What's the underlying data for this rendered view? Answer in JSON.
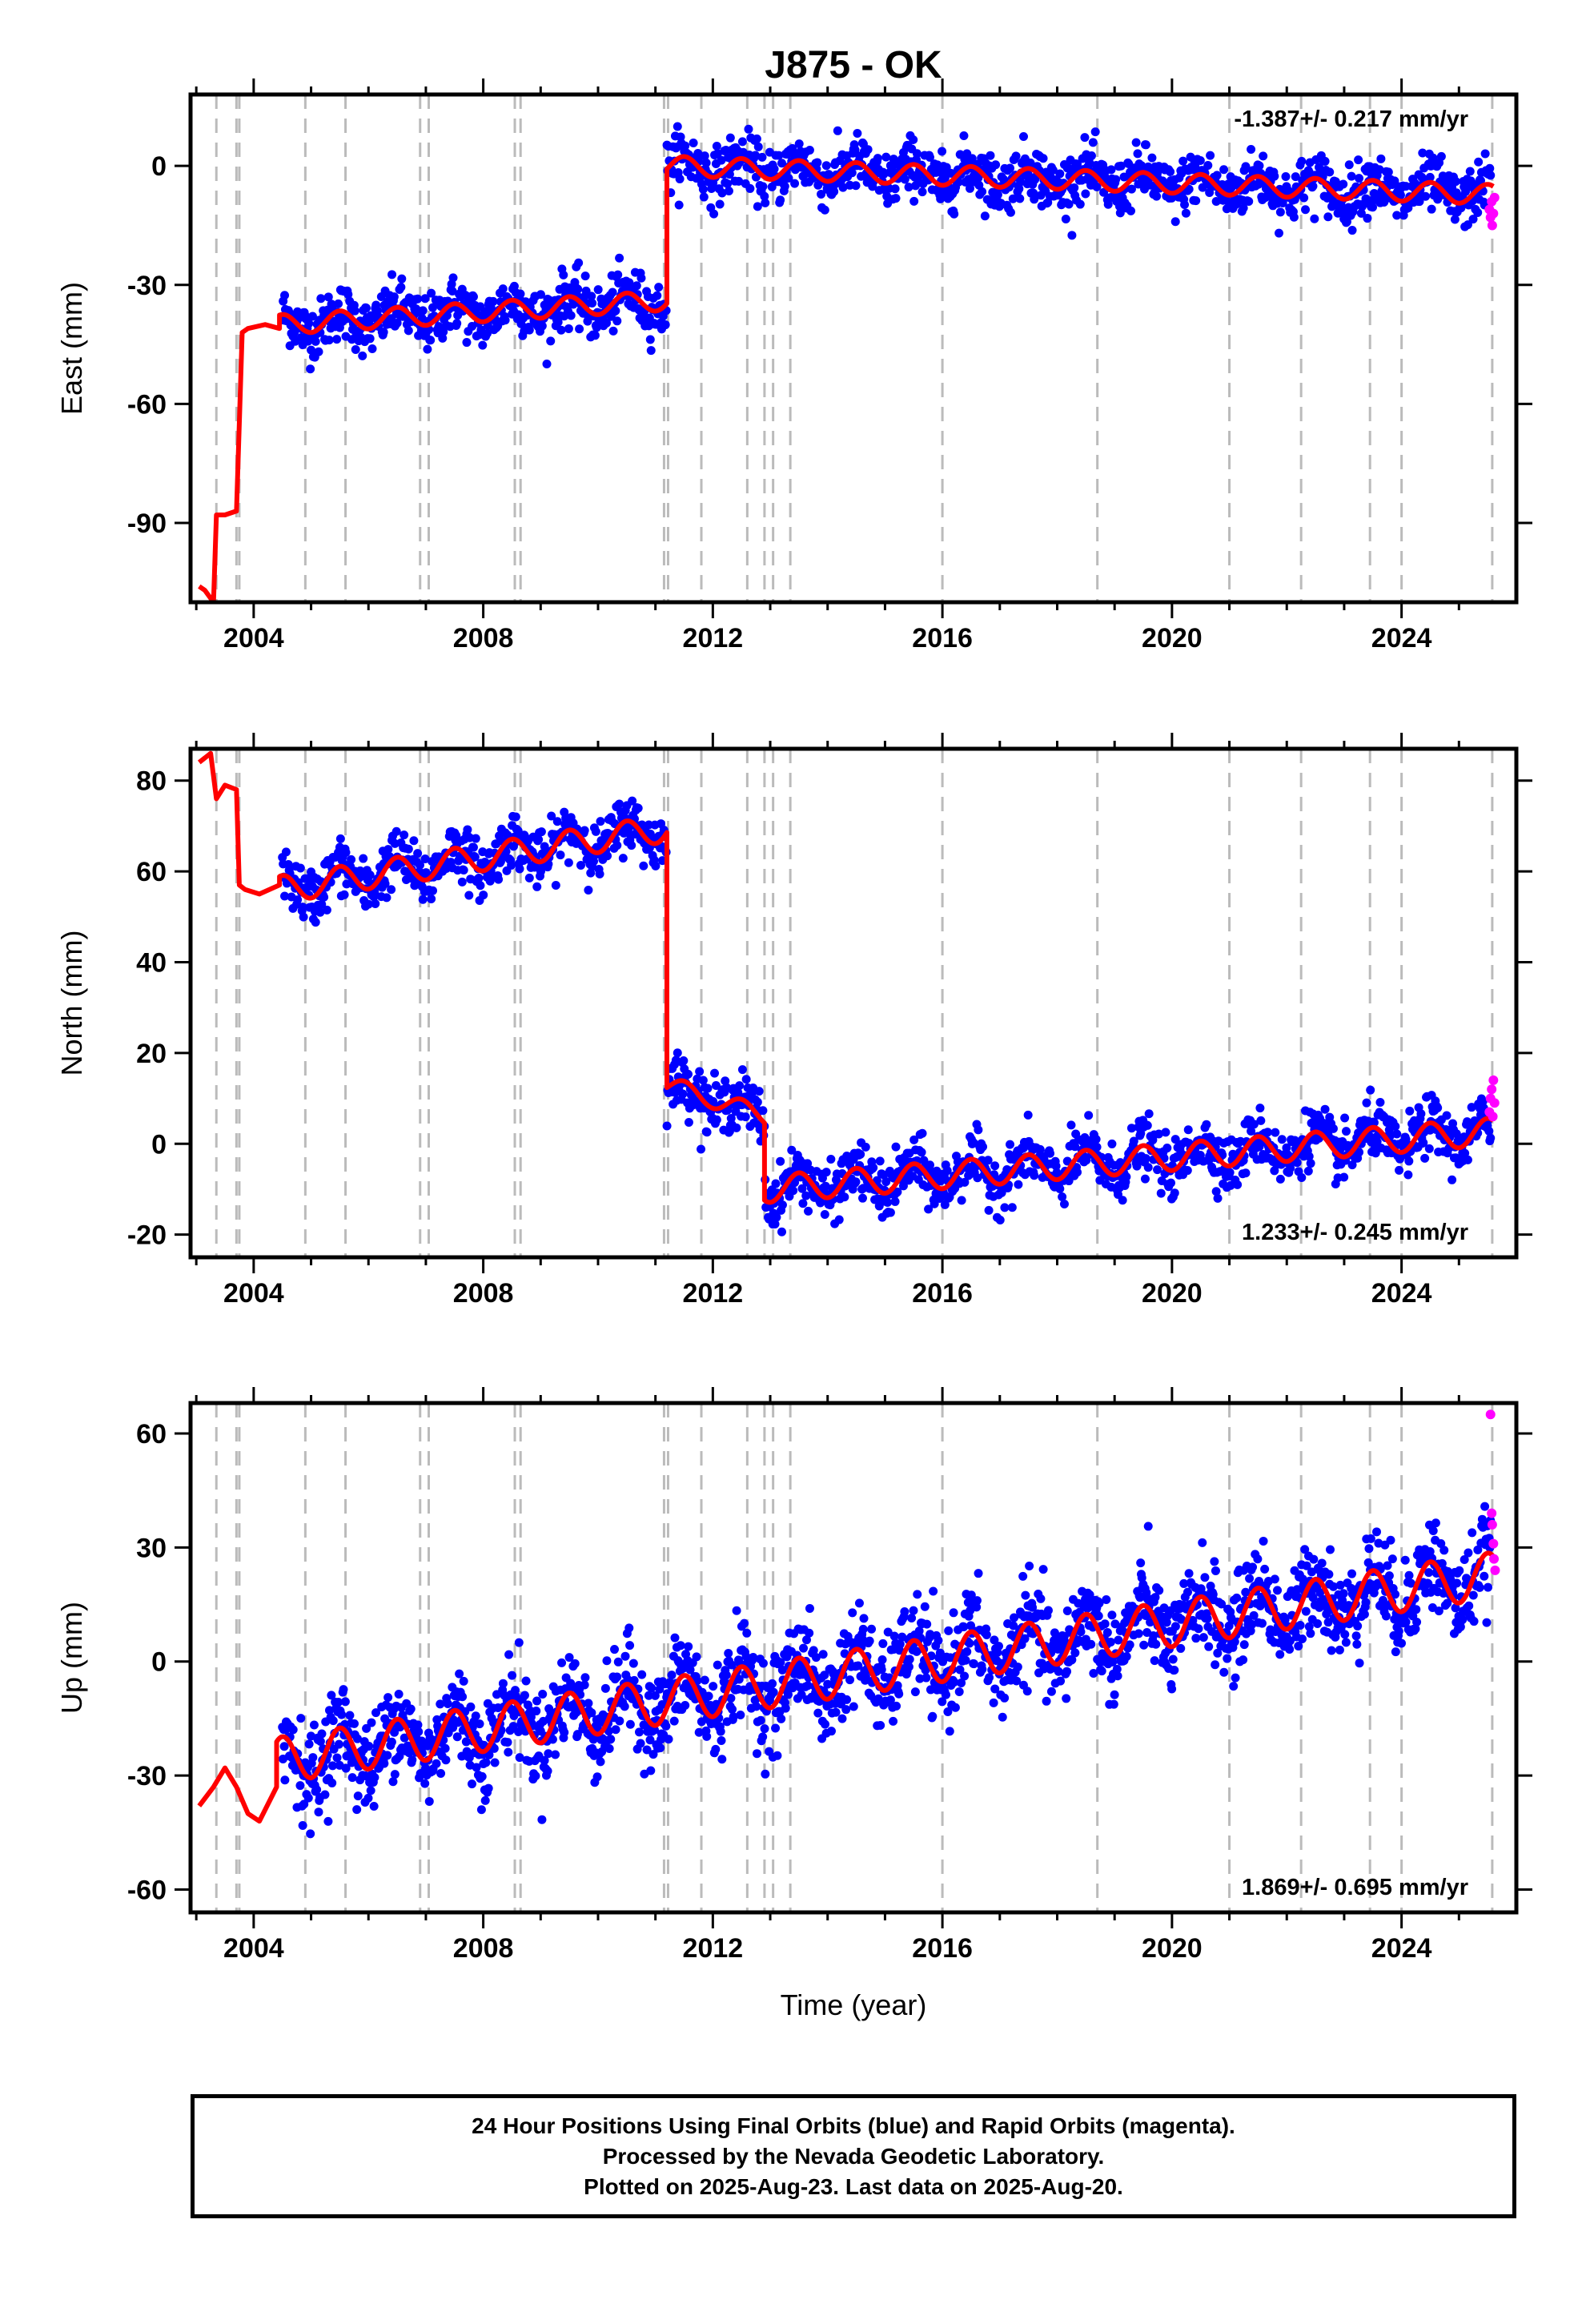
{
  "title": "J875 - OK",
  "xlabel": "Time (year)",
  "x_ticks": [
    "2004",
    "2008",
    "2012",
    "2016",
    "2020",
    "2024"
  ],
  "x_tick_values": [
    2004,
    2008,
    2012,
    2016,
    2020,
    2024
  ],
  "xlim": [
    2002.9,
    2026.0
  ],
  "equipment_changes": [
    2003.35,
    2003.7,
    2003.75,
    2004.9,
    2005.6,
    2006.9,
    2007.05,
    2008.55,
    2008.65,
    2011.15,
    2011.22,
    2011.8,
    2012.6,
    2012.9,
    2013.05,
    2013.35,
    2016.0,
    2018.7,
    2021.0,
    2022.25,
    2023.45,
    2024.0,
    2025.58
  ],
  "colors": {
    "final_orbits": "#0000ff",
    "rapid_orbits": "#ff00ff",
    "model_fit": "#ff0000",
    "event_lines": "#bbbbbb"
  },
  "footer": {
    "line1": "24 Hour Positions Using Final Orbits (blue) and Rapid Orbits (magenta).",
    "line2": "Processed by the Nevada Geodetic Laboratory.",
    "line3": "Plotted on 2025-Aug-23. Last data on 2025-Aug-20."
  },
  "chart_data": [
    {
      "type": "scatter",
      "ylabel": "East (mm)",
      "ylim": [
        -110,
        18
      ],
      "y_ticks": [
        "0",
        "-30",
        "-60",
        "-90"
      ],
      "y_tick_values": [
        0,
        -30,
        -60,
        -90
      ],
      "rate_label": "-1.387+/- 0.217 mm/yr",
      "model": {
        "breakpoints": [
          [
            2003.05,
            -106
          ],
          [
            2003.15,
            -107
          ],
          [
            2003.3,
            -110
          ],
          [
            2003.35,
            -88
          ],
          [
            2003.5,
            -88
          ],
          [
            2003.7,
            -87
          ],
          [
            2003.75,
            -65
          ],
          [
            2003.8,
            -42
          ],
          [
            2003.9,
            -41
          ],
          [
            2004.2,
            -40
          ],
          [
            2004.45,
            -41
          ]
        ],
        "segments": [
          {
            "start": 2004.45,
            "end": 2011.2,
            "y0": -40.0,
            "slope": 0.9,
            "amp": 2.5
          },
          {
            "start": 2011.2,
            "end": 2025.6,
            "y0": 0.0,
            "slope": -0.5,
            "amp": 2.5
          }
        ]
      },
      "blue": {
        "start": 2004.5,
        "end": 2025.55,
        "scatter": 3.5,
        "n": 1600
      },
      "magenta": [
        [
          2025.53,
          -11
        ],
        [
          2025.55,
          -13
        ],
        [
          2025.57,
          -9
        ],
        [
          2025.58,
          -15
        ],
        [
          2025.6,
          -12
        ],
        [
          2025.62,
          -8
        ]
      ]
    },
    {
      "type": "scatter",
      "ylabel": "North (mm)",
      "ylim": [
        -25,
        87
      ],
      "y_ticks": [
        "80",
        "60",
        "40",
        "20",
        "0",
        "-20"
      ],
      "y_tick_values": [
        80,
        60,
        40,
        20,
        0,
        -20
      ],
      "rate_label": "1.233+/- 0.245 mm/yr",
      "model": {
        "breakpoints": [
          [
            2003.05,
            84
          ],
          [
            2003.25,
            86
          ],
          [
            2003.35,
            76
          ],
          [
            2003.5,
            79
          ],
          [
            2003.7,
            78
          ],
          [
            2003.75,
            57
          ],
          [
            2003.85,
            56
          ],
          [
            2004.1,
            55
          ],
          [
            2004.45,
            57
          ]
        ],
        "segments": [
          {
            "start": 2004.45,
            "end": 2011.2,
            "y0": 56.0,
            "slope": 2.0,
            "amp": 3.0
          },
          {
            "start": 2011.2,
            "end": 2012.9,
            "y0": 13.0,
            "slope": -4.0,
            "amp": 2.0
          },
          {
            "start": 2012.9,
            "end": 2025.6,
            "y0": -10.0,
            "slope": 1.0,
            "amp": 3.0
          }
        ]
      },
      "blue": {
        "start": 2004.5,
        "end": 2025.55,
        "scatter": 3.0,
        "n": 1600
      },
      "magenta": [
        [
          2025.53,
          7
        ],
        [
          2025.55,
          10
        ],
        [
          2025.57,
          12
        ],
        [
          2025.59,
          6
        ],
        [
          2025.6,
          14
        ],
        [
          2025.62,
          9
        ]
      ]
    },
    {
      "type": "scatter",
      "ylabel": "Up (mm)",
      "ylim": [
        -66,
        68
      ],
      "y_ticks": [
        "60",
        "30",
        "0",
        "-30",
        "-60"
      ],
      "y_tick_values": [
        60,
        30,
        0,
        -30,
        -60
      ],
      "rate_label": "1.869+/- 0.695 mm/yr",
      "model": {
        "breakpoints": [
          [
            2003.05,
            -38
          ],
          [
            2003.3,
            -33
          ],
          [
            2003.5,
            -28
          ],
          [
            2003.7,
            -33
          ],
          [
            2003.9,
            -40
          ],
          [
            2004.1,
            -42
          ],
          [
            2004.4,
            -33
          ]
        ],
        "segments": [
          {
            "start": 2004.4,
            "end": 2025.6,
            "y0": -26.0,
            "slope": 2.3,
            "amp": 6.0
          }
        ]
      },
      "blue": {
        "start": 2004.5,
        "end": 2025.55,
        "scatter": 6.0,
        "n": 1900
      },
      "magenta": [
        [
          2025.55,
          65
        ],
        [
          2025.57,
          39
        ],
        [
          2025.58,
          36
        ],
        [
          2025.6,
          31
        ],
        [
          2025.61,
          27
        ],
        [
          2025.63,
          24
        ]
      ]
    }
  ]
}
